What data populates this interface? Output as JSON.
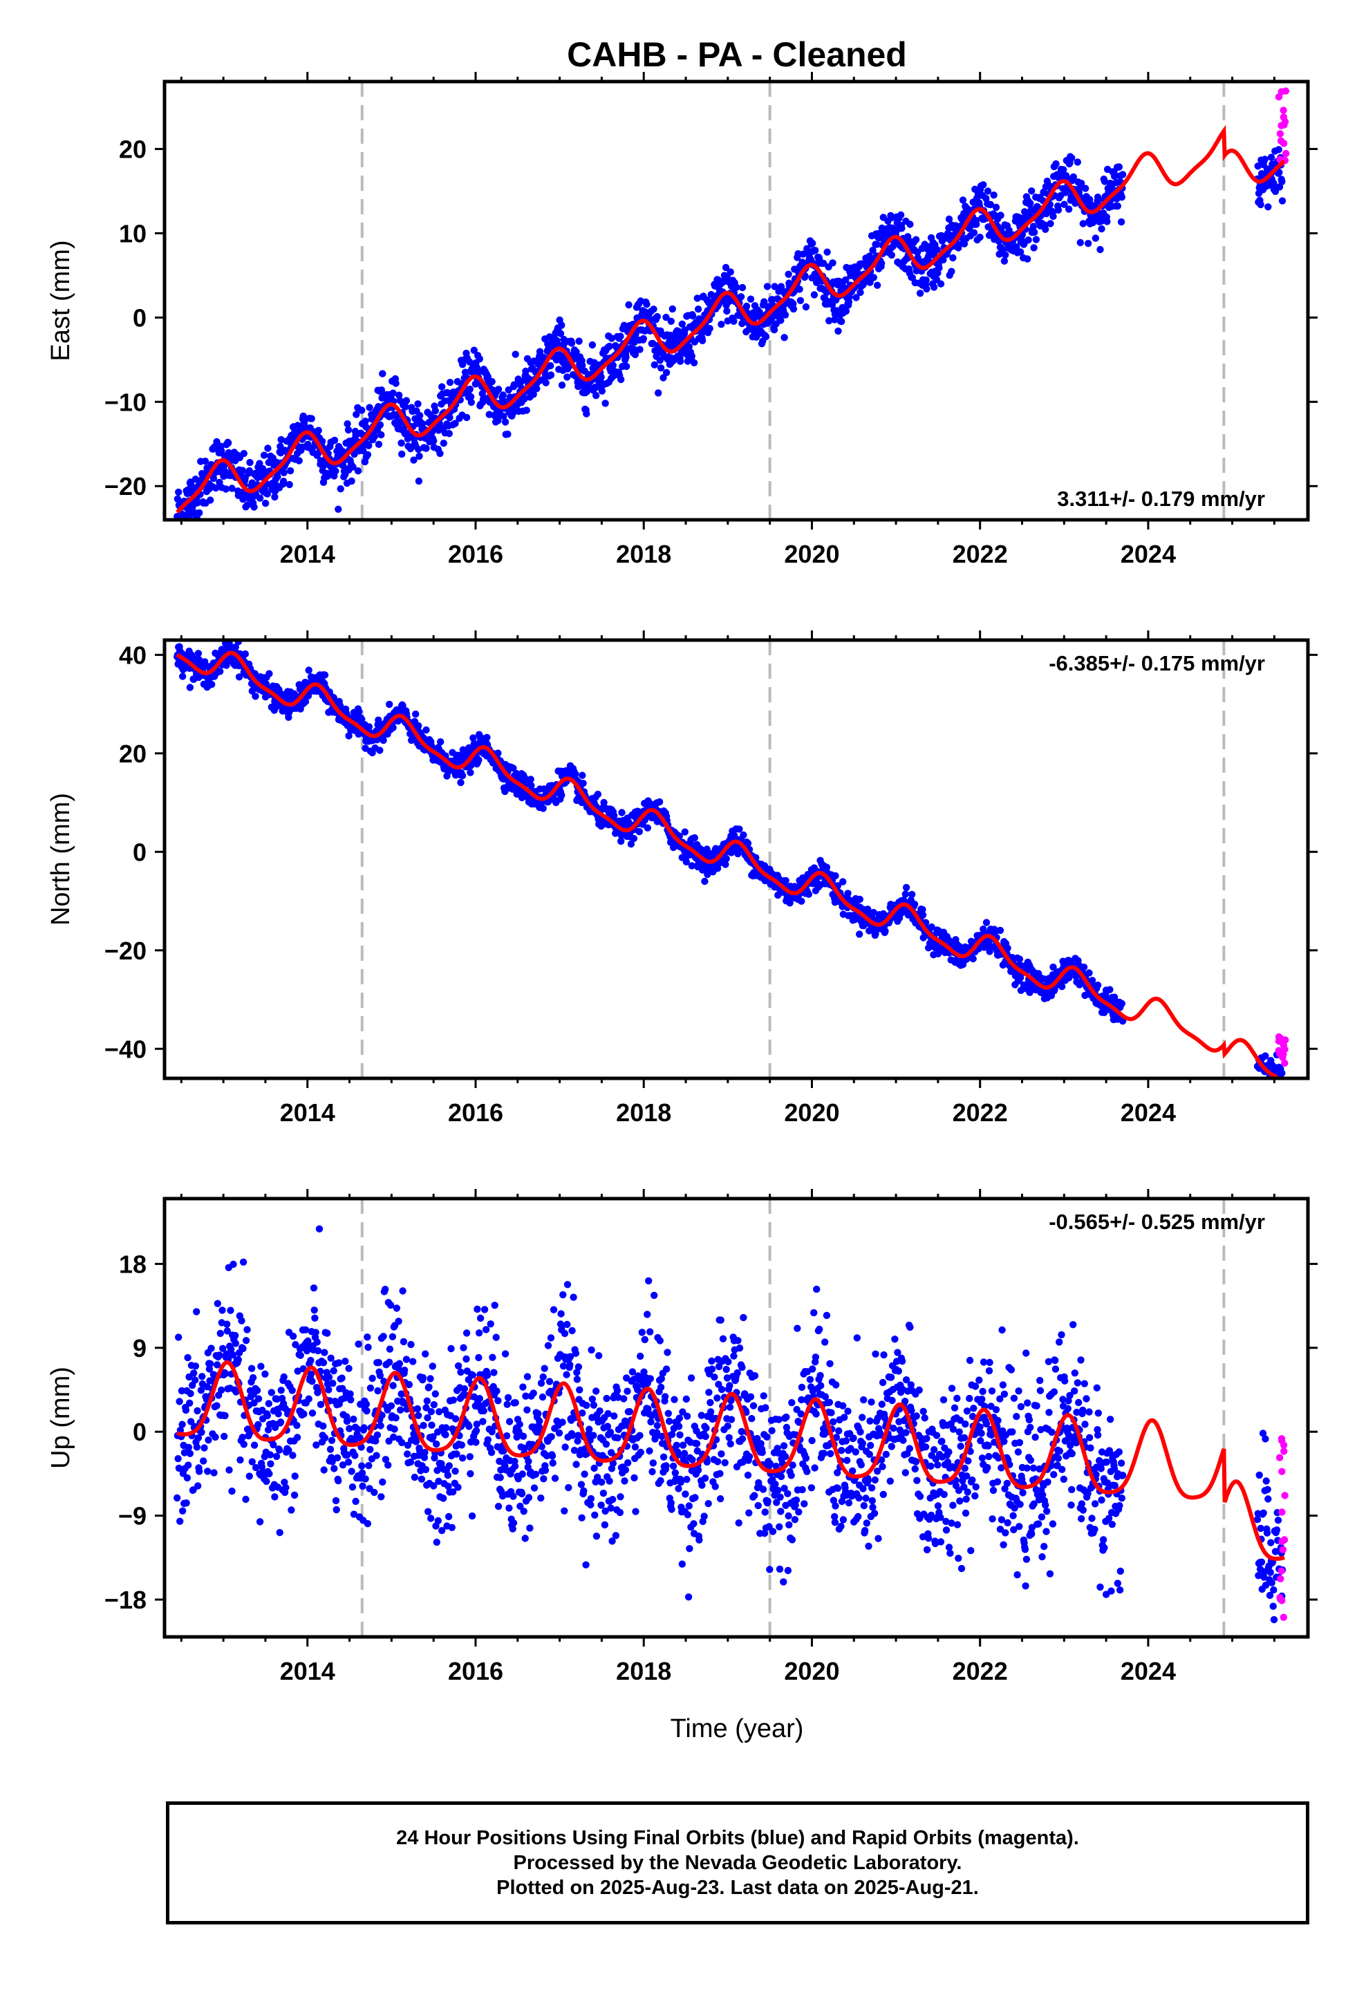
{
  "title": "CAHB  - PA - Cleaned",
  "xlabel": "Time (year)",
  "caption": [
    "24 Hour Positions Using Final Orbits (blue) and Rapid Orbits (magenta).",
    "Processed by the Nevada Geodetic Laboratory.",
    "Plotted on 2025-Aug-23. Last data on 2025-Aug-21."
  ],
  "colors": {
    "final_orbits": "#0000ff",
    "rapid_orbits": "#ff00ff",
    "model": "#ff0000",
    "event_line": "#bbbbbb"
  },
  "chart_data": [
    {
      "type": "scatter",
      "ylabel": "East (mm)",
      "rate_label": "3.311+/- 0.179 mm/yr",
      "xlim": [
        2012.3,
        2025.9
      ],
      "ylim": [
        -24,
        28
      ],
      "xticks": [
        "2014",
        "2016",
        "2018",
        "2020",
        "2022",
        "2024"
      ],
      "yticks": [
        "−20",
        "−10",
        "0",
        "10",
        "20"
      ],
      "ytick_values": [
        -20,
        -10,
        0,
        10,
        20
      ],
      "event_lines": [
        2014.65,
        2019.5,
        2024.9
      ],
      "final_orbits": {
        "x_range": [
          2012.45,
          2023.7
        ],
        "gaps": [
          [
            2023.7,
            2025.3
          ]
        ],
        "extra_x_range": [
          2025.3,
          2025.6
        ],
        "scatter_mm": 1.6,
        "rate": 3.311,
        "offset_2019": 1.5,
        "annual_amp": 2.2,
        "annual_phase": 2.0
      },
      "rapid_orbits": {
        "x_range": [
          2025.55,
          2025.64
        ],
        "y_range": [
          18,
          27
        ]
      },
      "model": {
        "rate": 3.311,
        "intercept_at_2019_5": 2.0,
        "annual_amp": 2.2,
        "annual_phase": 2.0,
        "semiannual_amp": 0.6,
        "offsets": [
          {
            "at": 2024.9,
            "jump": -3.0
          }
        ]
      }
    },
    {
      "type": "scatter",
      "ylabel": "North (mm)",
      "rate_label": "-6.385+/- 0.175 mm/yr",
      "xlim": [
        2012.3,
        2025.9
      ],
      "ylim": [
        -46,
        43
      ],
      "xticks": [
        "2014",
        "2016",
        "2018",
        "2020",
        "2022",
        "2024"
      ],
      "yticks": [
        "−40",
        "−20",
        "0",
        "20",
        "40"
      ],
      "ytick_values": [
        -40,
        -20,
        0,
        20,
        40
      ],
      "event_lines": [
        2014.65,
        2019.5,
        2024.9
      ],
      "final_orbits": {
        "x_range": [
          2012.45,
          2023.7
        ],
        "gaps": [
          [
            2023.7,
            2025.3
          ]
        ],
        "extra_x_range": [
          2025.3,
          2025.6
        ],
        "scatter_mm": 1.3,
        "rate": -6.385,
        "offset_2019": -4.0,
        "annual_amp": 2.8,
        "annual_phase": 0.6
      },
      "rapid_orbits": {
        "x_range": [
          2025.55,
          2025.64
        ],
        "y_range": [
          -43,
          -37
        ]
      },
      "model": {
        "rate": -6.385,
        "intercept_at_2019_5": -4.0,
        "annual_amp": 2.8,
        "annual_phase": 0.6,
        "semiannual_amp": 0.9,
        "offsets": [
          {
            "at": 2024.9,
            "jump": -2.0
          }
        ]
      }
    },
    {
      "type": "scatter",
      "ylabel": "Up (mm)",
      "rate_label": "-0.565+/- 0.525 mm/yr",
      "xlim": [
        2012.3,
        2025.9
      ],
      "ylim": [
        -22,
        25
      ],
      "xticks": [
        "2014",
        "2016",
        "2018",
        "2020",
        "2022",
        "2024"
      ],
      "yticks": [
        "18",
        "9",
        "0",
        "−9",
        "−18"
      ],
      "ytick_values": [
        18,
        9,
        0,
        -9,
        -18
      ],
      "event_lines": [
        2014.65,
        2019.5,
        2024.9
      ],
      "final_orbits": {
        "x_range": [
          2012.45,
          2023.7
        ],
        "gaps": [
          [
            2023.7,
            2025.3
          ]
        ],
        "extra_x_range": [
          2025.3,
          2025.6
        ],
        "scatter_mm": 4.5,
        "rate": -0.565,
        "offset_2019": -1.0,
        "annual_amp": 4.0,
        "annual_phase": 1.3
      },
      "rapid_orbits": {
        "x_range": [
          2025.55,
          2025.64
        ],
        "y_range": [
          -21,
          0
        ]
      },
      "model": {
        "rate": -0.565,
        "intercept_at_2019_5": -1.0,
        "annual_amp": 4.0,
        "annual_phase": 1.3,
        "semiannual_amp": 0.8,
        "offsets": [
          {
            "at": 2024.9,
            "jump": -6.0
          }
        ]
      }
    }
  ]
}
